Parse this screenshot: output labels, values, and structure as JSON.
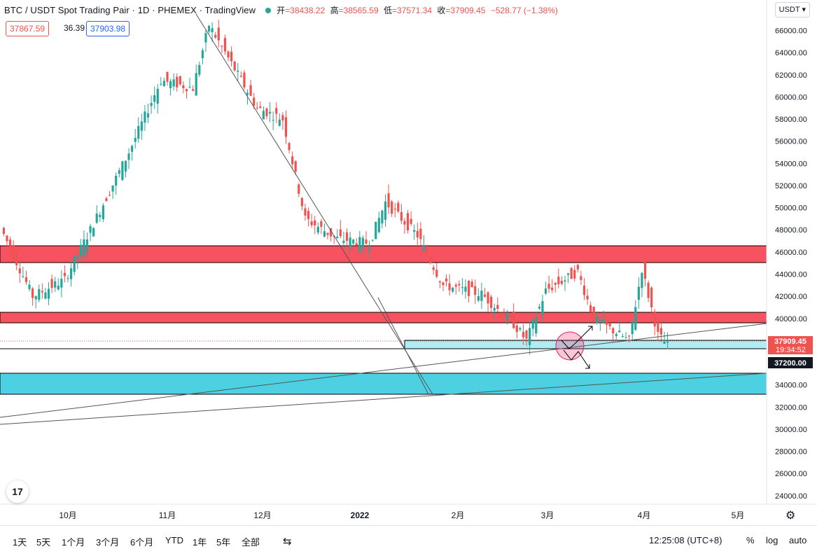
{
  "header": {
    "symbol": "BTC / USDT Spot Trading Pair · 1D · PHEMEX · TradingView",
    "open_label": "开",
    "open": "=38438.22",
    "high_label": "高",
    "high": "=38565.59",
    "low_label": "低",
    "low": "=37571.34",
    "close_label": "收",
    "close": "=37909.45",
    "change": "−528.77 (−1.38%)"
  },
  "trade": {
    "sell": "37867.59",
    "spread": "36.39",
    "buy": "37903.98"
  },
  "currency": "USDT",
  "colors": {
    "up": "#26a69a",
    "down": "#ef5350",
    "resistance": "#f7525f",
    "support": "#4dd0e1",
    "zone": "#b2ebf2"
  },
  "axis": {
    "price_ticks": [
      "66000.00",
      "64000.00",
      "62000.00",
      "60000.00",
      "58000.00",
      "56000.00",
      "54000.00",
      "52000.00",
      "50000.00",
      "48000.00",
      "46000.00",
      "44000.00",
      "42000.00",
      "40000.00",
      "38000.00",
      "36000.00",
      "34000.00",
      "32000.00",
      "30000.00",
      "28000.00",
      "26000.00",
      "24000.00"
    ],
    "time_ticks": [
      "10月",
      "11月",
      "12月",
      "2022",
      "2月",
      "3月",
      "4月",
      "5月"
    ]
  },
  "price_labels": {
    "last": "37909.45",
    "countdown": "19:34:52",
    "level": "37200.00"
  },
  "toolbar": {
    "ranges": [
      "1天",
      "5天",
      "1个月",
      "3个月",
      "6个月",
      "YTD",
      "1年",
      "5年",
      "全部"
    ],
    "time": "12:25:08 (UTC+8)",
    "percent": "%",
    "log": "log",
    "auto": "auto"
  },
  "logo_text": "17"
}
